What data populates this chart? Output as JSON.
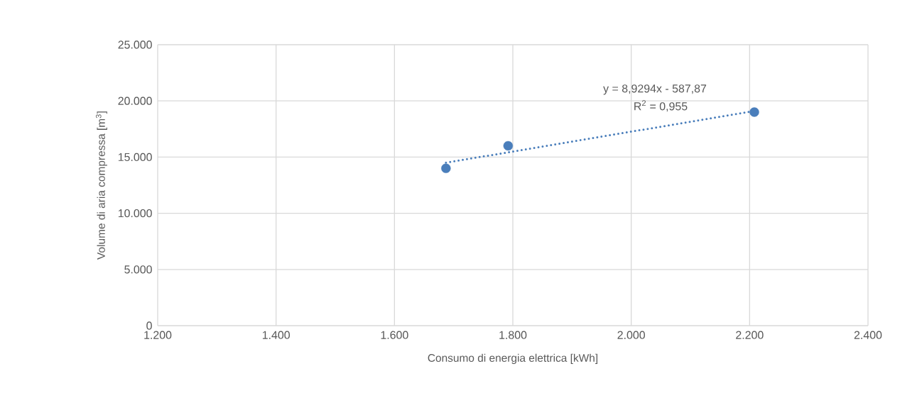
{
  "chart_data": {
    "type": "scatter",
    "xlabel": "Consumo di energia elettrica [kWh]",
    "ylabel": "Volume di aria compressa [m$^{3}$]",
    "x": [
      1687,
      1792,
      2208
    ],
    "series": [
      {
        "color": "#4a7ebb",
        "marker": "circle",
        "values": [
          14000,
          16000,
          19000
        ]
      },
      {
        "type": "line",
        "color": "#4a7ebb",
        "marker": "none",
        "line_style": "dotted",
        "x": [
          1687,
          2208
        ],
        "values": [
          14500,
          19100
        ]
      }
    ],
    "xlim": [
      1200,
      2400
    ],
    "xticks": [
      {
        "value": 1200,
        "label": "1.200"
      },
      {
        "value": 1400,
        "label": "1.400"
      },
      {
        "value": 1600,
        "label": "1.600"
      },
      {
        "value": 1800,
        "label": "1.800"
      },
      {
        "value": 2000,
        "label": "2.000"
      },
      {
        "value": 2200,
        "label": "2.200"
      },
      {
        "value": 2400,
        "label": "2.400"
      }
    ],
    "ylim": [
      0,
      25000
    ],
    "yticks": [
      0,
      {
        "value": 5000,
        "label": "5.000"
      },
      {
        "value": 10000,
        "label": "10.000"
      },
      {
        "value": 15000,
        "label": "15.000"
      },
      {
        "value": 20000,
        "label": "20.000"
      },
      {
        "value": 25000,
        "label": "25.000"
      }
    ],
    "grid": true,
    "annotations": [
      "y = 8,9294x - 587,87",
      "R$^{2}$ = 0,955"
    ]
  }
}
